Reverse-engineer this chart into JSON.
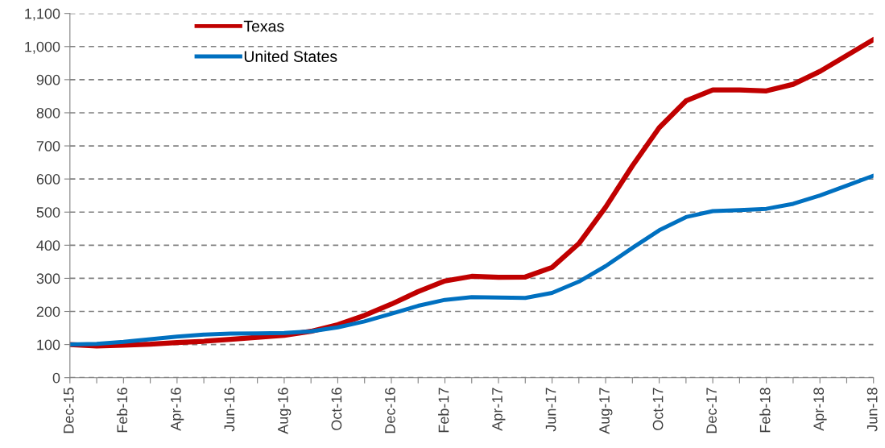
{
  "chart_data": {
    "type": "line",
    "categories": [
      "Dec-15",
      null,
      "Feb-16",
      null,
      "Apr-16",
      null,
      "Jun-16",
      null,
      "Aug-16",
      null,
      "Oct-16",
      null,
      "Dec-16",
      null,
      "Feb-17",
      null,
      "Apr-17",
      null,
      "Jun-17",
      null,
      "Aug-17",
      null,
      "Oct-17",
      null,
      "Dec-17",
      null,
      "Feb-18",
      null,
      "Apr-18",
      null,
      "Jun-18"
    ],
    "series": [
      {
        "name": "Texas",
        "color": "#c00000",
        "values": [
          100,
          96,
          98,
          101,
          106,
          110,
          116,
          122,
          128,
          140,
          160,
          188,
          222,
          260,
          292,
          306,
          303,
          304,
          333,
          405,
          515,
          640,
          755,
          836,
          869,
          869,
          866,
          886,
          925,
          973,
          1021
        ]
      },
      {
        "name": "United States",
        "color": "#0070c0",
        "values": [
          100,
          102,
          108,
          116,
          124,
          130,
          133,
          134,
          135,
          140,
          152,
          170,
          193,
          217,
          235,
          243,
          242,
          241,
          256,
          290,
          337,
          392,
          445,
          485,
          503,
          506,
          510,
          525,
          550,
          580,
          610
        ]
      }
    ],
    "ylim": [
      0,
      1100
    ],
    "yticks": [
      0,
      {
        "value": 100,
        "label": "100"
      },
      {
        "value": 200,
        "label": "200"
      },
      {
        "value": 300,
        "label": "300"
      },
      {
        "value": 400,
        "label": "400"
      },
      {
        "value": 500,
        "label": "500"
      },
      {
        "value": 600,
        "label": "600"
      },
      {
        "value": 700,
        "label": "700"
      },
      {
        "value": 800,
        "label": "800"
      },
      {
        "value": 900,
        "label": "900"
      },
      {
        "value": 1000,
        "label": "1,000"
      },
      {
        "value": 1100,
        "label": "1,100"
      }
    ],
    "grid": "y",
    "legend": "top left",
    "marker": "none",
    "line_style": "solid"
  }
}
